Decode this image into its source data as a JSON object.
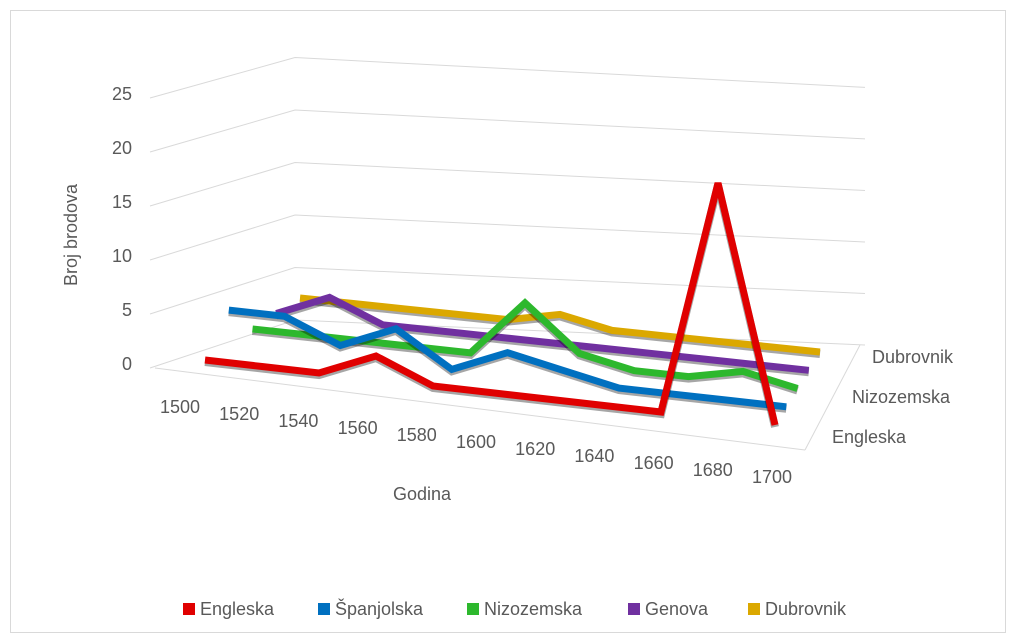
{
  "chart_data": {
    "type": "line3d",
    "y_label": "Broj brodova",
    "x_label": "Godina",
    "categories": [
      "1500",
      "1520",
      "1540",
      "1560",
      "1580",
      "1600",
      "1620",
      "1640",
      "1660",
      "1680",
      "1700"
    ],
    "ylim": [
      0,
      25
    ],
    "yticks": [
      0,
      5,
      10,
      15,
      20,
      25
    ],
    "grid": true,
    "legend": "bottom",
    "series": [
      {
        "name": "Engleska",
        "color": "#e00000",
        "values": [
          0,
          0,
          0,
          2,
          0,
          0,
          0,
          0,
          0,
          20,
          0
        ]
      },
      {
        "name": "Španjolska",
        "color": "#0070c0",
        "values": [
          3,
          3,
          1,
          3,
          0,
          2,
          1,
          0,
          0,
          0,
          0
        ]
      },
      {
        "name": "Nizozemska",
        "color": "#2db82d",
        "values": [
          0,
          0,
          0,
          0,
          0,
          5,
          1,
          0,
          0,
          1,
          0
        ]
      },
      {
        "name": "Genova",
        "color": "#7030a0",
        "values": [
          0,
          2,
          0,
          0,
          0,
          0,
          0,
          0,
          0,
          0,
          0
        ]
      },
      {
        "name": "Dubrovnik",
        "color": "#dba800",
        "values": [
          0,
          0,
          0,
          0,
          0,
          1,
          0,
          0,
          0,
          0,
          0
        ]
      }
    ]
  }
}
